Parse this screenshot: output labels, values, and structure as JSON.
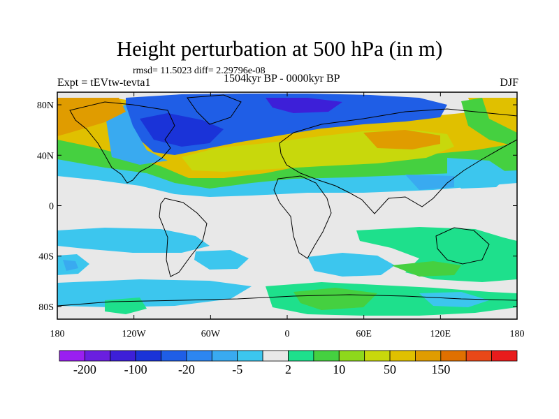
{
  "title": "Height perturbation at 500 hPa (in m)",
  "stats_text": "rmsd= 11.5023 diff= 2.29796e-08",
  "left_label": "Expt = tEVtw-tevta1",
  "center_label": "1504kyr BP - 0000kyr BP",
  "right_label": "DJF",
  "map": {
    "lon_ticks": [
      "180",
      "120W",
      "60W",
      "0",
      "60E",
      "120E",
      "180"
    ],
    "lat_ticks": [
      "80N",
      "40N",
      "0",
      "40S",
      "80S"
    ],
    "lat_tick_values": [
      80,
      40,
      0,
      -40,
      -80
    ],
    "lon_range": [
      -180,
      180
    ],
    "lat_range": [
      -90,
      90
    ]
  },
  "colorbar": {
    "colors": [
      "#9a1ff0",
      "#6a1fe0",
      "#3d1fd8",
      "#1a33d8",
      "#1f5ee6",
      "#2d86f0",
      "#39aaf0",
      "#3cc6ee",
      "#e8e8e8",
      "#1ee08c",
      "#45d040",
      "#8ed81c",
      "#c8d80c",
      "#e0c000",
      "#e09c00",
      "#e07000",
      "#e84818",
      "#e81c1c"
    ],
    "labels": [
      "-200",
      "-100",
      "-20",
      "-5",
      "2",
      "10",
      "50",
      "150"
    ]
  }
}
